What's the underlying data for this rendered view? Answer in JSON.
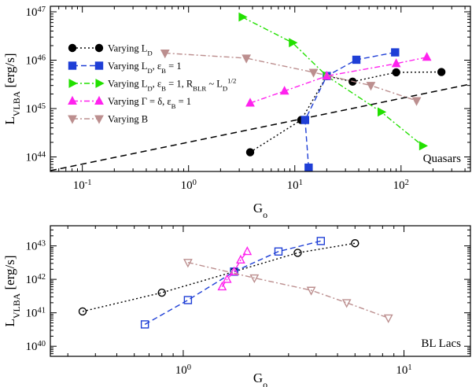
{
  "chart_data": [
    {
      "type": "scatter",
      "panel": "top",
      "xscale": "log",
      "yscale": "log",
      "xlim": [
        0.05,
        450
      ],
      "ylim": [
        5e+43,
        1.3e+47
      ],
      "xlabel": "G",
      "xlabel_sub": "o",
      "ylabel": "L",
      "ylabel_sub": "VLBA",
      "ylabel_unit": " [erg/s]",
      "xticks": [
        {
          "value": 0.1,
          "base": "10",
          "exp": "-1"
        },
        {
          "value": 1,
          "base": "10",
          "exp": "0"
        },
        {
          "value": 10,
          "base": "10",
          "exp": "1"
        },
        {
          "value": 100,
          "base": "10",
          "exp": "2"
        }
      ],
      "yticks": [
        {
          "value": 1e+44,
          "base": "10",
          "exp": "44"
        },
        {
          "value": 1e+45,
          "base": "10",
          "exp": "45"
        },
        {
          "value": 1e+46,
          "base": "10",
          "exp": "46"
        },
        {
          "value": 1e+47,
          "base": "10",
          "exp": "47"
        }
      ],
      "annotation": "Quasars",
      "legend_position": "upper-left",
      "reference_line": {
        "x": [
          0.05,
          450
        ],
        "y": [
          5.2e+43,
          3.2e+45
        ]
      },
      "series": [
        {
          "name": "Varying L_D",
          "label_parts": [
            [
              "Varying L",
              "n"
            ],
            [
              "D",
              "sub"
            ]
          ],
          "color": "#000000",
          "marker": "circle",
          "filled": true,
          "dash": "2,3",
          "x": [
            3.8,
            11.5,
            20,
            35,
            90,
            240
          ],
          "y": [
            1.25e+44,
            5.8e+44,
            4.7e+45,
            3.6e+45,
            5.6e+45,
            5.7e+45
          ]
        },
        {
          "name": "Varying L_D, εB = 1",
          "label_parts": [
            [
              "Varying L",
              "n"
            ],
            [
              "D",
              "sub"
            ],
            [
              ", ε",
              "n"
            ],
            [
              "B",
              "sub"
            ],
            [
              " = 1",
              "n"
            ]
          ],
          "color": "#1f3fd6",
          "marker": "square",
          "filled": true,
          "dash": "7,4",
          "x": [
            13.5,
            12.5,
            20,
            38,
            88
          ],
          "y": [
            6e+43,
            5.8e+44,
            4.7e+45,
            1.02e+46,
            1.45e+46
          ]
        },
        {
          "name": "Varying L_D, εB = 1, R_BLR ~ L_D^1/2",
          "label_parts": [
            [
              "Varying L",
              "n"
            ],
            [
              "D",
              "sub"
            ],
            [
              ", ε",
              "n"
            ],
            [
              "B",
              "sub"
            ],
            [
              " = 1, R",
              "n"
            ],
            [
              "BLR",
              "sub"
            ],
            [
              " ~ L",
              "n"
            ],
            [
              "D",
              "sub"
            ],
            [
              "1/2",
              "sup"
            ]
          ],
          "color": "#22e000",
          "marker": "triangle-right",
          "filled": true,
          "dash": "7,3,2,3",
          "x": [
            3.2,
            9.5,
            20,
            65,
            160
          ],
          "y": [
            7.8e+46,
            2.3e+46,
            4.7e+45,
            8.5e+44,
            1.7e+44
          ]
        },
        {
          "name": "Varying Γ = δ, εB = 1",
          "label_parts": [
            [
              "Varying Γ = δ, ε",
              "n"
            ],
            [
              "B",
              "sub"
            ],
            [
              " = 1",
              "n"
            ]
          ],
          "color": "#ff22ee",
          "marker": "triangle-up",
          "filled": true,
          "dash": "7,3,2,3",
          "x": [
            3.8,
            8,
            20,
            90,
            175
          ],
          "y": [
            1.3e+45,
            2.3e+45,
            4.7e+45,
            8.5e+45,
            1.15e+46
          ]
        },
        {
          "name": "Varying B",
          "label_parts": [
            [
              "Varying B",
              "n"
            ]
          ],
          "color": "#bc8f8f",
          "marker": "triangle-down",
          "filled": true,
          "dash": "7,3,2,3",
          "x": [
            0.6,
            3.5,
            15,
            52,
            140
          ],
          "y": [
            1.4e+46,
            1.1e+46,
            5.6e+45,
            3e+45,
            1.45e+45
          ]
        }
      ]
    },
    {
      "type": "scatter",
      "panel": "bottom",
      "xscale": "log",
      "yscale": "log",
      "xlim": [
        0.25,
        20
      ],
      "ylim": [
        5e+39,
        4e+43
      ],
      "xlabel": "G",
      "xlabel_sub": "o",
      "ylabel": "L",
      "ylabel_sub": "VLBA",
      "ylabel_unit": " [erg/s]",
      "xticks": [
        {
          "value": 1,
          "base": "10",
          "exp": "0"
        },
        {
          "value": 10,
          "base": "10",
          "exp": "1"
        }
      ],
      "yticks": [
        {
          "value": 1e+40,
          "base": "10",
          "exp": "40"
        },
        {
          "value": 1e+41,
          "base": "10",
          "exp": "41"
        },
        {
          "value": 1e+42,
          "base": "10",
          "exp": "42"
        },
        {
          "value": 1e+43,
          "base": "10",
          "exp": "43"
        }
      ],
      "annotation": "BL Lacs",
      "series": [
        {
          "name": "Varying L_D",
          "color": "#000000",
          "marker": "circle",
          "filled": false,
          "dash": "2,3",
          "x": [
            0.35,
            0.8,
            1.7,
            3.3,
            6
          ],
          "y": [
            1.1e+41,
            4e+41,
            1.7e+42,
            6.2e+42,
            1.2e+43
          ]
        },
        {
          "name": "Varying L_D, εB = 1",
          "color": "#1f3fd6",
          "marker": "square",
          "filled": false,
          "dash": "7,4",
          "x": [
            0.67,
            1.05,
            1.7,
            2.7,
            4.2
          ],
          "y": [
            4.5e+40,
            2.4e+41,
            1.7e+42,
            6.8e+42,
            1.4e+43
          ]
        },
        {
          "name": "Varying Γ = δ, εB = 1",
          "color": "#ff22ee",
          "marker": "triangle-up",
          "filled": false,
          "dash": "7,3,2,3",
          "x": [
            1.5,
            1.58,
            1.7,
            1.82,
            1.95
          ],
          "y": [
            6e+41,
            1e+42,
            1.7e+42,
            3.8e+42,
            6.8e+42
          ]
        },
        {
          "name": "Varying B",
          "color": "#bc8f8f",
          "marker": "triangle-down",
          "filled": false,
          "dash": "7,3,2,3",
          "x": [
            1.05,
            2.1,
            3.8,
            5.5,
            8.5
          ],
          "y": [
            3.2e+42,
            1.1e+42,
            4.7e+41,
            2e+41,
            7e+40
          ]
        }
      ]
    }
  ]
}
